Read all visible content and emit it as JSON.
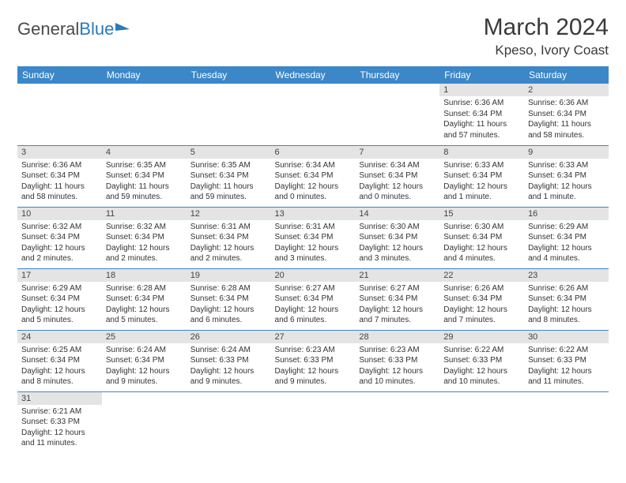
{
  "logo": {
    "part1": "General",
    "part2": "Blue"
  },
  "title": "March 2024",
  "location": "Kpeso, Ivory Coast",
  "weekdays": [
    "Sunday",
    "Monday",
    "Tuesday",
    "Wednesday",
    "Thursday",
    "Friday",
    "Saturday"
  ],
  "colors": {
    "header_bg": "#3b87c8",
    "header_text": "#ffffff",
    "daynum_bg": "#e4e4e4",
    "cell_border": "#3b87c8",
    "logo_blue": "#2a7ab9"
  },
  "rows": [
    [
      {
        "day": "",
        "lines": []
      },
      {
        "day": "",
        "lines": []
      },
      {
        "day": "",
        "lines": []
      },
      {
        "day": "",
        "lines": []
      },
      {
        "day": "",
        "lines": []
      },
      {
        "day": "1",
        "lines": [
          "Sunrise: 6:36 AM",
          "Sunset: 6:34 PM",
          "Daylight: 11 hours",
          "and 57 minutes."
        ]
      },
      {
        "day": "2",
        "lines": [
          "Sunrise: 6:36 AM",
          "Sunset: 6:34 PM",
          "Daylight: 11 hours",
          "and 58 minutes."
        ]
      }
    ],
    [
      {
        "day": "3",
        "lines": [
          "Sunrise: 6:36 AM",
          "Sunset: 6:34 PM",
          "Daylight: 11 hours",
          "and 58 minutes."
        ]
      },
      {
        "day": "4",
        "lines": [
          "Sunrise: 6:35 AM",
          "Sunset: 6:34 PM",
          "Daylight: 11 hours",
          "and 59 minutes."
        ]
      },
      {
        "day": "5",
        "lines": [
          "Sunrise: 6:35 AM",
          "Sunset: 6:34 PM",
          "Daylight: 11 hours",
          "and 59 minutes."
        ]
      },
      {
        "day": "6",
        "lines": [
          "Sunrise: 6:34 AM",
          "Sunset: 6:34 PM",
          "Daylight: 12 hours",
          "and 0 minutes."
        ]
      },
      {
        "day": "7",
        "lines": [
          "Sunrise: 6:34 AM",
          "Sunset: 6:34 PM",
          "Daylight: 12 hours",
          "and 0 minutes."
        ]
      },
      {
        "day": "8",
        "lines": [
          "Sunrise: 6:33 AM",
          "Sunset: 6:34 PM",
          "Daylight: 12 hours",
          "and 1 minute."
        ]
      },
      {
        "day": "9",
        "lines": [
          "Sunrise: 6:33 AM",
          "Sunset: 6:34 PM",
          "Daylight: 12 hours",
          "and 1 minute."
        ]
      }
    ],
    [
      {
        "day": "10",
        "lines": [
          "Sunrise: 6:32 AM",
          "Sunset: 6:34 PM",
          "Daylight: 12 hours",
          "and 2 minutes."
        ]
      },
      {
        "day": "11",
        "lines": [
          "Sunrise: 6:32 AM",
          "Sunset: 6:34 PM",
          "Daylight: 12 hours",
          "and 2 minutes."
        ]
      },
      {
        "day": "12",
        "lines": [
          "Sunrise: 6:31 AM",
          "Sunset: 6:34 PM",
          "Daylight: 12 hours",
          "and 2 minutes."
        ]
      },
      {
        "day": "13",
        "lines": [
          "Sunrise: 6:31 AM",
          "Sunset: 6:34 PM",
          "Daylight: 12 hours",
          "and 3 minutes."
        ]
      },
      {
        "day": "14",
        "lines": [
          "Sunrise: 6:30 AM",
          "Sunset: 6:34 PM",
          "Daylight: 12 hours",
          "and 3 minutes."
        ]
      },
      {
        "day": "15",
        "lines": [
          "Sunrise: 6:30 AM",
          "Sunset: 6:34 PM",
          "Daylight: 12 hours",
          "and 4 minutes."
        ]
      },
      {
        "day": "16",
        "lines": [
          "Sunrise: 6:29 AM",
          "Sunset: 6:34 PM",
          "Daylight: 12 hours",
          "and 4 minutes."
        ]
      }
    ],
    [
      {
        "day": "17",
        "lines": [
          "Sunrise: 6:29 AM",
          "Sunset: 6:34 PM",
          "Daylight: 12 hours",
          "and 5 minutes."
        ]
      },
      {
        "day": "18",
        "lines": [
          "Sunrise: 6:28 AM",
          "Sunset: 6:34 PM",
          "Daylight: 12 hours",
          "and 5 minutes."
        ]
      },
      {
        "day": "19",
        "lines": [
          "Sunrise: 6:28 AM",
          "Sunset: 6:34 PM",
          "Daylight: 12 hours",
          "and 6 minutes."
        ]
      },
      {
        "day": "20",
        "lines": [
          "Sunrise: 6:27 AM",
          "Sunset: 6:34 PM",
          "Daylight: 12 hours",
          "and 6 minutes."
        ]
      },
      {
        "day": "21",
        "lines": [
          "Sunrise: 6:27 AM",
          "Sunset: 6:34 PM",
          "Daylight: 12 hours",
          "and 7 minutes."
        ]
      },
      {
        "day": "22",
        "lines": [
          "Sunrise: 6:26 AM",
          "Sunset: 6:34 PM",
          "Daylight: 12 hours",
          "and 7 minutes."
        ]
      },
      {
        "day": "23",
        "lines": [
          "Sunrise: 6:26 AM",
          "Sunset: 6:34 PM",
          "Daylight: 12 hours",
          "and 8 minutes."
        ]
      }
    ],
    [
      {
        "day": "24",
        "lines": [
          "Sunrise: 6:25 AM",
          "Sunset: 6:34 PM",
          "Daylight: 12 hours",
          "and 8 minutes."
        ]
      },
      {
        "day": "25",
        "lines": [
          "Sunrise: 6:24 AM",
          "Sunset: 6:34 PM",
          "Daylight: 12 hours",
          "and 9 minutes."
        ]
      },
      {
        "day": "26",
        "lines": [
          "Sunrise: 6:24 AM",
          "Sunset: 6:33 PM",
          "Daylight: 12 hours",
          "and 9 minutes."
        ]
      },
      {
        "day": "27",
        "lines": [
          "Sunrise: 6:23 AM",
          "Sunset: 6:33 PM",
          "Daylight: 12 hours",
          "and 9 minutes."
        ]
      },
      {
        "day": "28",
        "lines": [
          "Sunrise: 6:23 AM",
          "Sunset: 6:33 PM",
          "Daylight: 12 hours",
          "and 10 minutes."
        ]
      },
      {
        "day": "29",
        "lines": [
          "Sunrise: 6:22 AM",
          "Sunset: 6:33 PM",
          "Daylight: 12 hours",
          "and 10 minutes."
        ]
      },
      {
        "day": "30",
        "lines": [
          "Sunrise: 6:22 AM",
          "Sunset: 6:33 PM",
          "Daylight: 12 hours",
          "and 11 minutes."
        ]
      }
    ],
    [
      {
        "day": "31",
        "lines": [
          "Sunrise: 6:21 AM",
          "Sunset: 6:33 PM",
          "Daylight: 12 hours",
          "and 11 minutes."
        ]
      },
      {
        "day": "",
        "lines": []
      },
      {
        "day": "",
        "lines": []
      },
      {
        "day": "",
        "lines": []
      },
      {
        "day": "",
        "lines": []
      },
      {
        "day": "",
        "lines": []
      },
      {
        "day": "",
        "lines": []
      }
    ]
  ]
}
